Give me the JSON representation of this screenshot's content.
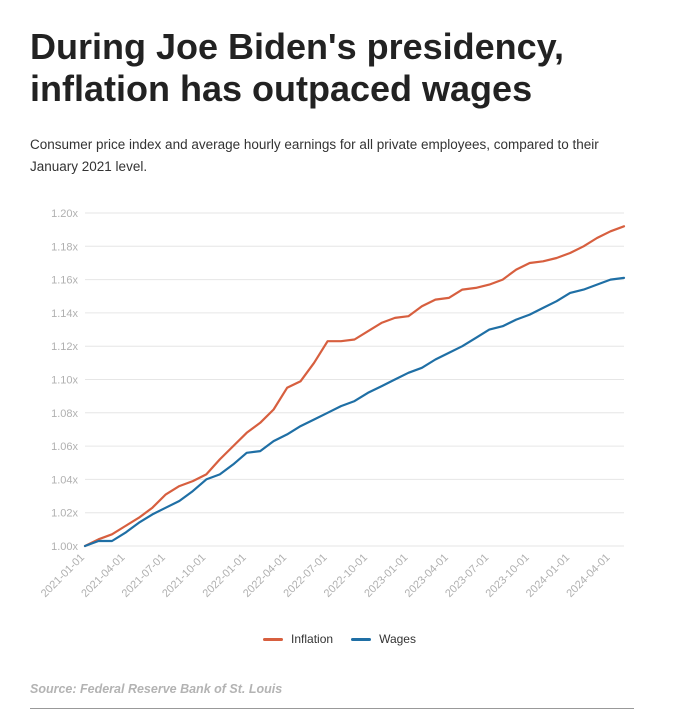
{
  "title": "During Joe Biden's presidency, inflation has outpaced wages",
  "subtitle": "Consumer price index and average hourly earnings for all private employees, compared to their January 2021 level.",
  "source": "Source: Federal Reserve Bank of St. Louis",
  "colors": {
    "inflation": "#d75f3f",
    "wages": "#1f6fa5",
    "grid": "#e6e6e6",
    "tick_text": "#b0b0b0"
  },
  "chart_data": {
    "type": "line",
    "grid": true,
    "legend_placement": "bottom-center",
    "ylim": [
      1.0,
      1.2
    ],
    "y_ticks": [
      "1.00x",
      "1.02x",
      "1.04x",
      "1.06x",
      "1.08x",
      "1.10x",
      "1.12x",
      "1.14x",
      "1.16x",
      "1.18x",
      "1.20x"
    ],
    "x_tick_labels": [
      "2021-01-01",
      "2021-04-01",
      "2021-07-01",
      "2021-10-01",
      "2022-01-01",
      "2022-04-01",
      "2022-07-01",
      "2022-10-01",
      "2023-01-01",
      "2023-04-01",
      "2023-07-01",
      "2023-10-01",
      "2024-01-01",
      "2024-04-01"
    ],
    "x_start": "2021-01-01",
    "series": [
      {
        "name": "Inflation",
        "values": [
          1.0,
          1.004,
          1.007,
          1.012,
          1.017,
          1.023,
          1.031,
          1.036,
          1.039,
          1.043,
          1.052,
          1.06,
          1.068,
          1.074,
          1.082,
          1.095,
          1.099,
          1.11,
          1.123,
          1.123,
          1.124,
          1.129,
          1.134,
          1.137,
          1.138,
          1.144,
          1.148,
          1.149,
          1.154,
          1.155,
          1.157,
          1.16,
          1.166,
          1.17,
          1.171,
          1.173,
          1.176,
          1.18,
          1.185,
          1.189,
          1.192
        ]
      },
      {
        "name": "Wages",
        "values": [
          1.0,
          1.003,
          1.003,
          1.008,
          1.014,
          1.019,
          1.023,
          1.027,
          1.033,
          1.04,
          1.043,
          1.049,
          1.056,
          1.057,
          1.063,
          1.067,
          1.072,
          1.076,
          1.08,
          1.084,
          1.087,
          1.092,
          1.096,
          1.1,
          1.104,
          1.107,
          1.112,
          1.116,
          1.12,
          1.125,
          1.13,
          1.132,
          1.136,
          1.139,
          1.143,
          1.147,
          1.152,
          1.154,
          1.157,
          1.16,
          1.161
        ]
      }
    ]
  }
}
